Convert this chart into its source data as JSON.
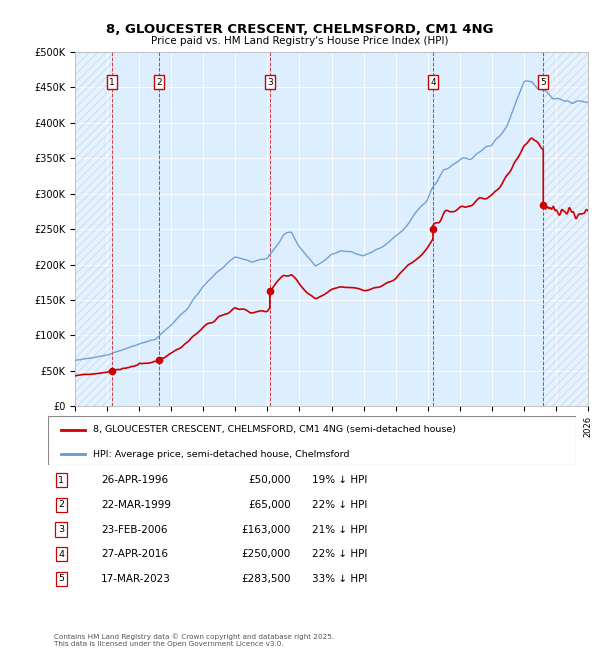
{
  "title": "8, GLOUCESTER CRESCENT, CHELMSFORD, CM1 4NG",
  "subtitle": "Price paid vs. HM Land Registry's House Price Index (HPI)",
  "transactions": [
    {
      "num": 1,
      "date": "26-APR-1996",
      "year": 1996.32,
      "price": 50000,
      "hpi_pct": "19% ↓ HPI"
    },
    {
      "num": 2,
      "date": "22-MAR-1999",
      "year": 1999.22,
      "price": 65000,
      "hpi_pct": "22% ↓ HPI"
    },
    {
      "num": 3,
      "date": "23-FEB-2006",
      "year": 2006.15,
      "price": 163000,
      "hpi_pct": "21% ↓ HPI"
    },
    {
      "num": 4,
      "date": "27-APR-2016",
      "year": 2016.33,
      "price": 250000,
      "hpi_pct": "22% ↓ HPI"
    },
    {
      "num": 5,
      "date": "17-MAR-2023",
      "year": 2023.21,
      "price": 283500,
      "hpi_pct": "33% ↓ HPI"
    }
  ],
  "xmin": 1994,
  "xmax": 2026,
  "ymin": 0,
  "ymax": 500000,
  "yticks": [
    0,
    50000,
    100000,
    150000,
    200000,
    250000,
    300000,
    350000,
    400000,
    450000,
    500000
  ],
  "background_color": "#ffffff",
  "plot_bg_color": "#ddeeff",
  "red_line_color": "#cc0000",
  "blue_line_color": "#6699cc",
  "legend_label_red": "8, GLOUCESTER CRESCENT, CHELMSFORD, CM1 4NG (semi-detached house)",
  "legend_label_blue": "HPI: Average price, semi-detached house, Chelmsford",
  "footer": "Contains HM Land Registry data © Crown copyright and database right 2025.\nThis data is licensed under the Open Government Licence v3.0.",
  "hpi_control_points": [
    [
      1994,
      65000
    ],
    [
      1995,
      68000
    ],
    [
      1996,
      72000
    ],
    [
      1997,
      80000
    ],
    [
      1998,
      88000
    ],
    [
      1999,
      95000
    ],
    [
      2000,
      115000
    ],
    [
      2001,
      138000
    ],
    [
      2002,
      170000
    ],
    [
      2003,
      192000
    ],
    [
      2004,
      210000
    ],
    [
      2005,
      205000
    ],
    [
      2006,
      208000
    ],
    [
      2007,
      243000
    ],
    [
      2007.5,
      245000
    ],
    [
      2008,
      225000
    ],
    [
      2008.5,
      210000
    ],
    [
      2009,
      198000
    ],
    [
      2009.5,
      205000
    ],
    [
      2010,
      215000
    ],
    [
      2011,
      218000
    ],
    [
      2012,
      213000
    ],
    [
      2013,
      222000
    ],
    [
      2014,
      238000
    ],
    [
      2015,
      265000
    ],
    [
      2016,
      295000
    ],
    [
      2017,
      335000
    ],
    [
      2018,
      345000
    ],
    [
      2019,
      355000
    ],
    [
      2020,
      368000
    ],
    [
      2021,
      400000
    ],
    [
      2022,
      455000
    ],
    [
      2022.5,
      460000
    ],
    [
      2023,
      450000
    ],
    [
      2023.5,
      440000
    ],
    [
      2024,
      435000
    ],
    [
      2025,
      430000
    ],
    [
      2026,
      432000
    ]
  ]
}
